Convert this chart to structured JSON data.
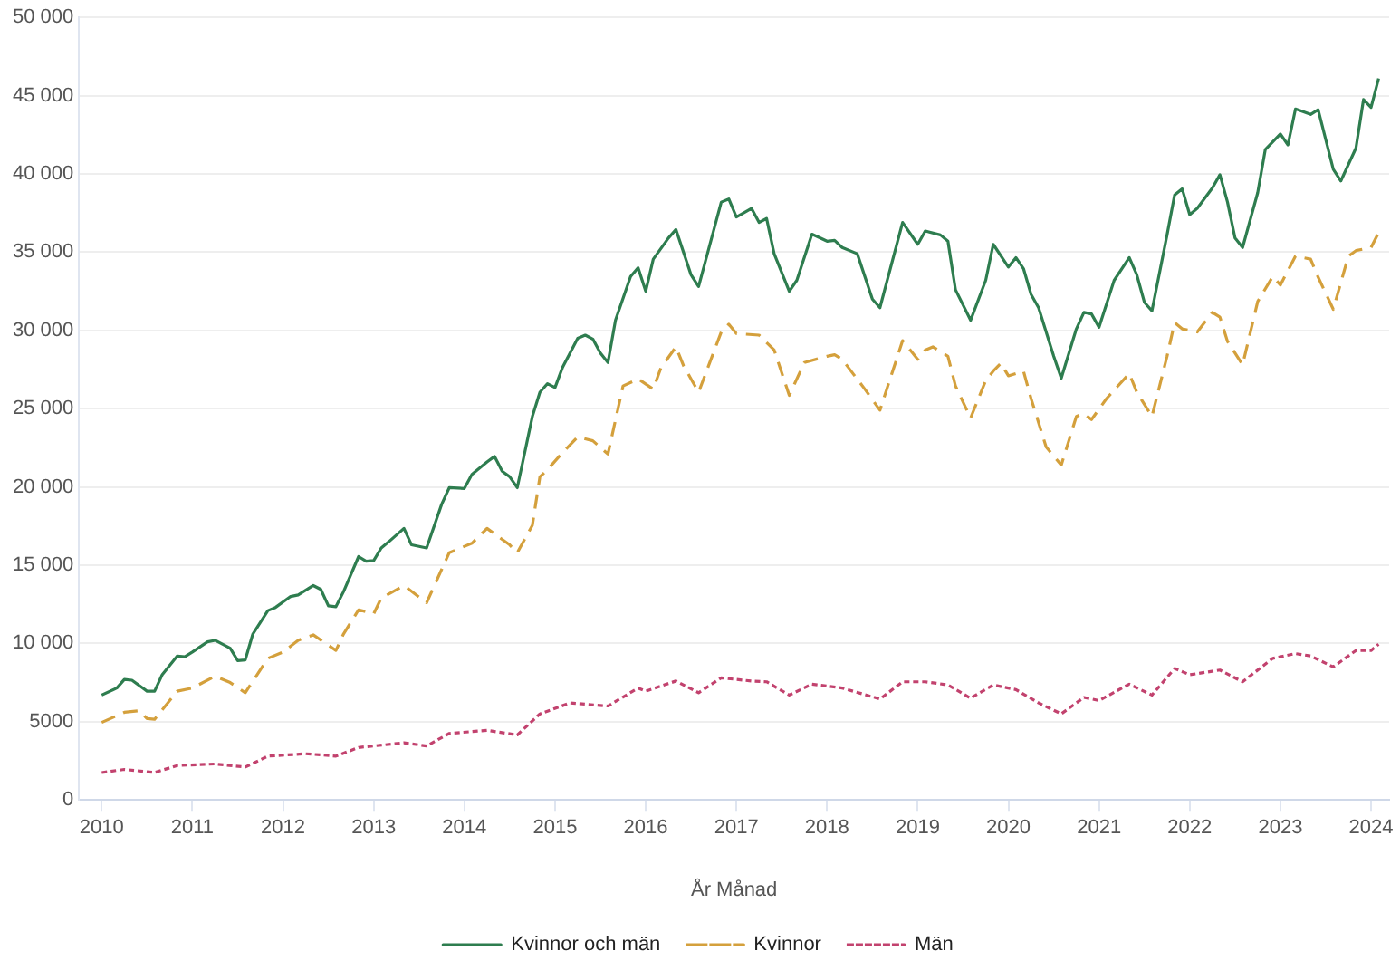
{
  "chart_data": {
    "type": "line",
    "xlabel": "År Månad",
    "legend": "bottom",
    "grid": "y",
    "xlim": [
      "2009-10",
      "2024-03-13"
    ],
    "xticks": [
      "2010",
      "2011",
      "2012",
      "2013",
      "2014",
      "2015",
      "2016",
      "2017",
      "2018",
      "2019",
      "2020",
      "2021",
      "2022",
      "2023",
      "2024"
    ],
    "ylim": [
      0,
      50000
    ],
    "yticks": [
      0,
      5000,
      {
        "value": 10000,
        "label": "10 000"
      },
      {
        "value": 15000,
        "label": "15 000"
      },
      {
        "value": 20000,
        "label": "20 000"
      },
      {
        "value": 25000,
        "label": "25 000"
      },
      {
        "value": 30000,
        "label": "30 000"
      },
      {
        "value": 35000,
        "label": "35 000"
      },
      {
        "value": 40000,
        "label": "40 000"
      },
      {
        "value": 45000,
        "label": "45 000"
      },
      {
        "value": 50000,
        "label": "50 000"
      }
    ],
    "series": [
      {
        "name": "Kvinnor och män",
        "color": "#2e7d4f",
        "line_style": "solid",
        "x": [
          "2010-01",
          "2010-03",
          "2010-04",
          "2010-05",
          "2010-07",
          "2010-08",
          "2010-09",
          "2010-11",
          "2010-12",
          "2011-01",
          "2011-03",
          "2011-04",
          "2011-06",
          "2011-07",
          "2011-08",
          "2011-09",
          "2011-11",
          "2011-12",
          "2012-02",
          "2012-03",
          "2012-05",
          "2012-06",
          "2012-07",
          "2012-08",
          "2012-09",
          "2012-11",
          "2012-12",
          "2013-01",
          "2013-02",
          "2013-03",
          "2013-05",
          "2013-06",
          "2013-08",
          "2013-10",
          "2013-11",
          "2014-01",
          "2014-02",
          "2014-04",
          "2014-05",
          "2014-06",
          "2014-07",
          "2014-08",
          "2014-10",
          "2014-11",
          "2014-12",
          "2015-01",
          "2015-02",
          "2015-04",
          "2015-05",
          "2015-06",
          "2015-07",
          "2015-08",
          "2015-09",
          "2015-11",
          "2015-12",
          "2016-01",
          "2016-02",
          "2016-04",
          "2016-05",
          "2016-07",
          "2016-08",
          "2016-11",
          "2016-12",
          "2017-01",
          "2017-03",
          "2017-04",
          "2017-05",
          "2017-06",
          "2017-08",
          "2017-09",
          "2017-11",
          "2018-01",
          "2018-02",
          "2018-03",
          "2018-05",
          "2018-07",
          "2018-08",
          "2018-11",
          "2019-01",
          "2019-02",
          "2019-04",
          "2019-05",
          "2019-06",
          "2019-08",
          "2019-10",
          "2019-11",
          "2020-01",
          "2020-02",
          "2020-03",
          "2020-04",
          "2020-05",
          "2020-07",
          "2020-08",
          "2020-10",
          "2020-11",
          "2020-12",
          "2021-01",
          "2021-03",
          "2021-05",
          "2021-06",
          "2021-07",
          "2021-08",
          "2021-10",
          "2021-11",
          "2021-12",
          "2022-01",
          "2022-02",
          "2022-04",
          "2022-05",
          "2022-06",
          "2022-07",
          "2022-08",
          "2022-10",
          "2022-11",
          "2023-01",
          "2023-02",
          "2023-03",
          "2023-05",
          "2023-06",
          "2023-08",
          "2023-09",
          "2023-11",
          "2023-12",
          "2024-01",
          "2024-02"
        ],
        "values": [
          6700,
          7150,
          7700,
          7650,
          6950,
          6950,
          8000,
          9200,
          9150,
          9450,
          10100,
          10200,
          9700,
          8900,
          8950,
          10600,
          12100,
          12300,
          13000,
          13100,
          13700,
          13450,
          12400,
          12350,
          13300,
          15550,
          15250,
          15300,
          16100,
          16500,
          17350,
          16300,
          16100,
          18900,
          19950,
          19900,
          20800,
          21600,
          21950,
          21000,
          20650,
          19950,
          24500,
          26050,
          26600,
          26350,
          27650,
          29500,
          29700,
          29450,
          28550,
          27950,
          30650,
          33450,
          34000,
          32500,
          34550,
          35900,
          36450,
          33550,
          32800,
          38200,
          38400,
          37250,
          37800,
          36900,
          37150,
          34900,
          32500,
          33200,
          36150,
          35700,
          35750,
          35300,
          34900,
          32000,
          31450,
          36900,
          35500,
          36350,
          36100,
          35700,
          32600,
          30650,
          33200,
          35500,
          34050,
          34650,
          33950,
          32300,
          31450,
          28350,
          26950,
          30100,
          31150,
          31050,
          30200,
          33200,
          34650,
          33550,
          31800,
          31250,
          36100,
          38650,
          39050,
          37400,
          37800,
          39100,
          39950,
          38200,
          35900,
          35300,
          38800,
          41550,
          42550,
          41850,
          44150,
          43800,
          44100,
          40300,
          39550,
          41650,
          44750,
          44250,
          46100
        ]
      },
      {
        "name": "Kvinnor",
        "color": "#d4a03c",
        "line_style": "dashed",
        "x": [
          "2010-01",
          "2010-04",
          "2010-06",
          "2010-07",
          "2010-08",
          "2010-11",
          "2011-01",
          "2011-04",
          "2011-06",
          "2011-08",
          "2011-11",
          "2012-01",
          "2012-03",
          "2012-05",
          "2012-08",
          "2012-09",
          "2012-11",
          "2013-01",
          "2013-02",
          "2013-05",
          "2013-08",
          "2013-11",
          "2014-02",
          "2014-04",
          "2014-07",
          "2014-08",
          "2014-10",
          "2014-11",
          "2014-12",
          "2015-02",
          "2015-04",
          "2015-06",
          "2015-08",
          "2015-10",
          "2015-12",
          "2016-02",
          "2016-03",
          "2016-05",
          "2016-06",
          "2016-08",
          "2016-11",
          "2016-12",
          "2017-01",
          "2017-04",
          "2017-06",
          "2017-08",
          "2017-10",
          "2018-01",
          "2018-02",
          "2018-03",
          "2018-06",
          "2018-08",
          "2018-11",
          "2019-01",
          "2019-02",
          "2019-03",
          "2019-05",
          "2019-06",
          "2019-08",
          "2019-10",
          "2019-11",
          "2019-12",
          "2020-01",
          "2020-03",
          "2020-04",
          "2020-06",
          "2020-08",
          "2020-10",
          "2020-11",
          "2020-12",
          "2021-02",
          "2021-05",
          "2021-06",
          "2021-08",
          "2021-10",
          "2021-11",
          "2021-12",
          "2022-02",
          "2022-04",
          "2022-05",
          "2022-06",
          "2022-08",
          "2022-10",
          "2022-12",
          "2023-01",
          "2023-03",
          "2023-05",
          "2023-06",
          "2023-08",
          "2023-10",
          "2023-11",
          "2024-01",
          "2024-02"
        ],
        "values": [
          4950,
          5600,
          5700,
          5200,
          5150,
          6950,
          7150,
          7900,
          7500,
          6850,
          9050,
          9450,
          10200,
          10550,
          9550,
          10600,
          12150,
          11900,
          12900,
          13700,
          12600,
          15800,
          16400,
          17350,
          16300,
          15800,
          17550,
          20650,
          21100,
          22200,
          23200,
          22950,
          22100,
          26450,
          26900,
          26250,
          27600,
          28950,
          27750,
          26050,
          29900,
          30400,
          29800,
          29700,
          28750,
          25850,
          27950,
          28350,
          28450,
          28150,
          26250,
          24900,
          29350,
          28150,
          28750,
          28950,
          28350,
          26450,
          24400,
          26800,
          27400,
          27900,
          27100,
          27400,
          25650,
          22550,
          21400,
          24500,
          24700,
          24300,
          25650,
          27250,
          26050,
          24500,
          28350,
          30500,
          30100,
          29900,
          31150,
          30850,
          29300,
          27800,
          31850,
          33450,
          32900,
          34750,
          34550,
          33400,
          31350,
          34750,
          35100,
          35300,
          36250
        ]
      },
      {
        "name": "Män",
        "color": "#c2426e",
        "line_style": "dotted",
        "x": [
          "2010-01",
          "2010-04",
          "2010-08",
          "2010-11",
          "2011-04",
          "2011-08",
          "2011-11",
          "2012-04",
          "2012-08",
          "2012-11",
          "2013-05",
          "2013-08",
          "2013-11",
          "2014-04",
          "2014-08",
          "2014-11",
          "2015-03",
          "2015-08",
          "2015-12",
          "2016-01",
          "2016-05",
          "2016-08",
          "2016-11",
          "2017-03",
          "2017-05",
          "2017-08",
          "2017-11",
          "2018-03",
          "2018-08",
          "2018-11",
          "2019-02",
          "2019-05",
          "2019-08",
          "2019-11",
          "2020-02",
          "2020-05",
          "2020-08",
          "2020-11",
          "2021-01",
          "2021-05",
          "2021-08",
          "2021-11",
          "2022-01",
          "2022-05",
          "2022-08",
          "2022-12",
          "2023-03",
          "2023-05",
          "2023-08",
          "2023-11",
          "2024-01",
          "2024-02"
        ],
        "values": [
          1750,
          1950,
          1750,
          2200,
          2300,
          2100,
          2800,
          2950,
          2800,
          3350,
          3650,
          3450,
          4250,
          4450,
          4150,
          5500,
          6200,
          6000,
          7150,
          6950,
          7600,
          6850,
          7800,
          7600,
          7550,
          6700,
          7400,
          7150,
          6450,
          7550,
          7550,
          7350,
          6500,
          7350,
          7050,
          6200,
          5500,
          6550,
          6350,
          7400,
          6700,
          8400,
          8000,
          8300,
          7550,
          9050,
          9350,
          9200,
          8500,
          9550,
          9550,
          9950
        ]
      }
    ]
  }
}
